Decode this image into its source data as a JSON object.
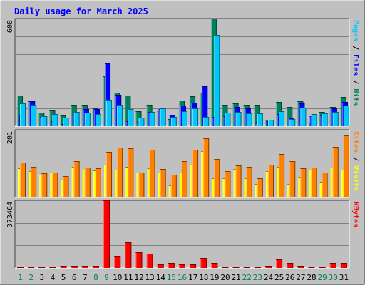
{
  "title": "Daily usage for March 2025",
  "colors": {
    "hits": "#00805c",
    "files": "#0000ff",
    "pages": "#00c8ff",
    "visits": "#ffff00",
    "sites": "#ff8000",
    "kbytes": "#ff0000",
    "weekend": "#00805c",
    "weekday": "#000000",
    "title": "#0000ff",
    "panel_bg": "#c0c0c0",
    "grid": "#808080"
  },
  "chart_data": [
    {
      "type": "bar",
      "title": "Daily usage for March 2025",
      "categories": [
        "1",
        "2",
        "3",
        "4",
        "5",
        "6",
        "7",
        "8",
        "9",
        "10",
        "11",
        "12",
        "13",
        "14",
        "15",
        "16",
        "17",
        "18",
        "19",
        "20",
        "21",
        "22",
        "23",
        "24",
        "25",
        "26",
        "27",
        "28",
        "29",
        "30",
        "31"
      ],
      "weekend": [
        1,
        2,
        8,
        9,
        15,
        16,
        22,
        23,
        29,
        30
      ],
      "ymax_label": "608",
      "ylim": [
        0,
        608
      ],
      "legend": [
        "Pages",
        "Files",
        "Hits"
      ],
      "series": [
        {
          "name": "Hits",
          "values": [
            175,
            140,
            75,
            90,
            60,
            120,
            120,
            100,
            280,
            190,
            175,
            85,
            120,
            85,
            40,
            145,
            170,
            190,
            608,
            120,
            130,
            120,
            120,
            35,
            135,
            110,
            140,
            20,
            80,
            110,
            165
          ]
        },
        {
          "name": "Files",
          "values": [
            65,
            140,
            54,
            28,
            14,
            68,
            95,
            95,
            355,
            178,
            28,
            24,
            80,
            95,
            65,
            115,
            132,
            225,
            52,
            55,
            108,
            100,
            25,
            28,
            70,
            48,
            130,
            55,
            60,
            100,
            135
          ]
        },
        {
          "name": "Pages",
          "values": [
            128,
            120,
            56,
            67,
            48,
            80,
            75,
            70,
            149,
            122,
            98,
            49,
            80,
            100,
            51,
            85,
            102,
            52,
            517,
            78,
            80,
            74,
            73,
            35,
            84,
            42,
            105,
            69,
            72,
            82,
            115
          ]
        }
      ]
    },
    {
      "type": "bar",
      "ymax_label": "201",
      "ylim": [
        0,
        201
      ],
      "legend": [
        "Sites",
        "Visits"
      ],
      "series": [
        {
          "name": "Visits",
          "values": [
            87,
            78,
            68,
            73,
            52,
            92,
            82,
            80,
            98,
            82,
            90,
            73,
            87,
            74,
            35,
            73,
            98,
            138,
            58,
            58,
            85,
            57,
            40,
            78,
            90,
            40,
            62,
            82,
            45,
            88,
            82
          ]
        },
        {
          "name": "Sites",
          "values": [
            103,
            92,
            72,
            75,
            63,
            107,
            88,
            87,
            135,
            148,
            147,
            75,
            142,
            85,
            67,
            108,
            142,
            175,
            115,
            78,
            95,
            90,
            58,
            98,
            130,
            107,
            87,
            88,
            75,
            150,
            185
          ]
        }
      ]
    },
    {
      "type": "bar",
      "ymax_label": "373464",
      "ylim": [
        0,
        373464
      ],
      "legend": [
        "KBytes"
      ],
      "series": [
        {
          "name": "KBytes",
          "values": [
            4000,
            4000,
            4000,
            4000,
            13000,
            11000,
            10000,
            11000,
            373464,
            66000,
            141000,
            88000,
            80000,
            21000,
            26000,
            21000,
            19000,
            54000,
            26000,
            4000,
            4000,
            4000,
            4000,
            13000,
            47000,
            26000,
            13000,
            4000,
            4000,
            26000,
            26000
          ]
        }
      ]
    }
  ]
}
